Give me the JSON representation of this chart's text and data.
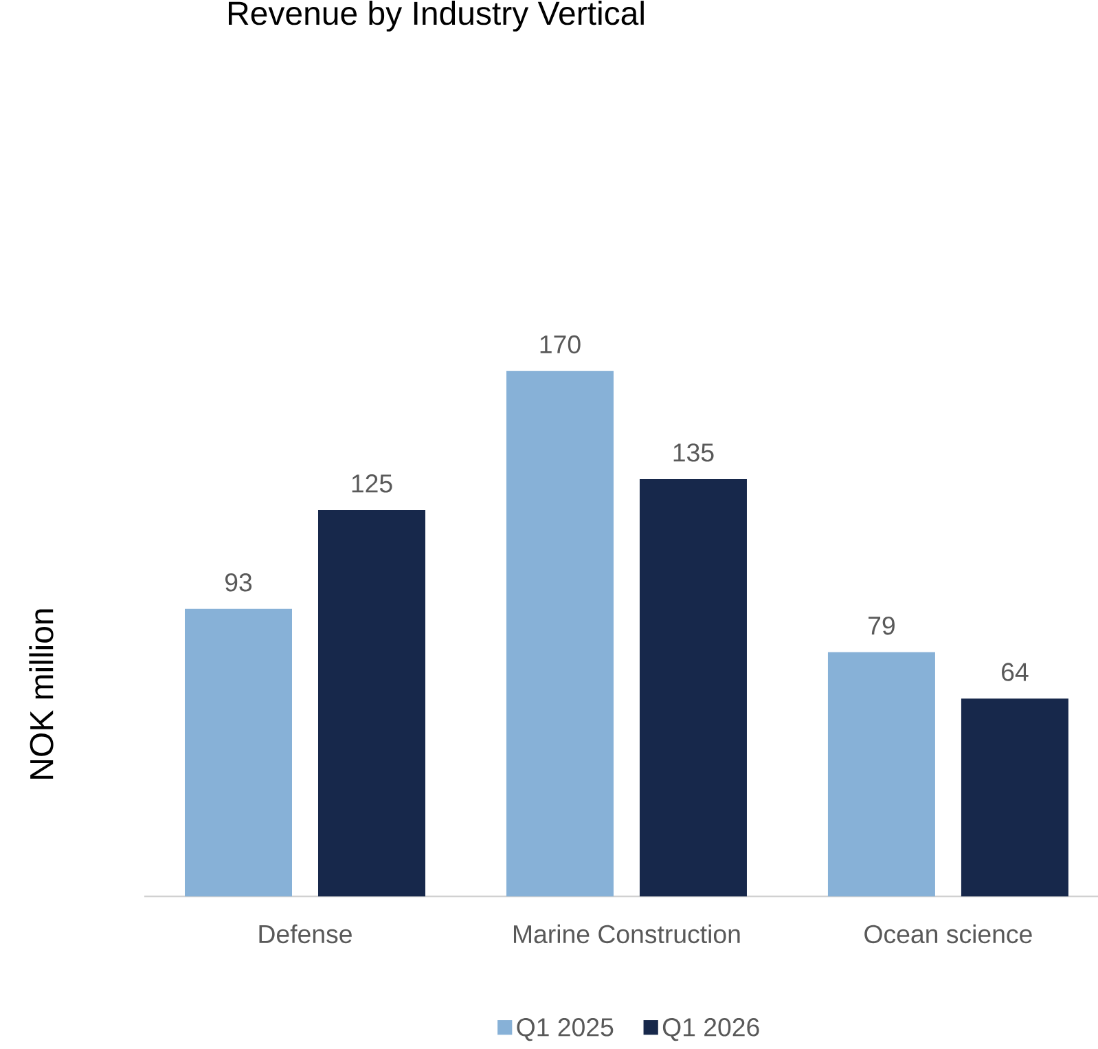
{
  "chart_data": {
    "type": "bar",
    "title": "Revenue by Industry Vertical",
    "ylabel": "NOK million",
    "categories": [
      "Defense",
      "Marine Construction",
      "Ocean science"
    ],
    "series": [
      {
        "name": "Q1 2025",
        "color": "#87b1d7",
        "values": [
          93,
          170,
          79
        ]
      },
      {
        "name": "Q1 2026",
        "color": "#17284b",
        "values": [
          125,
          135,
          64
        ]
      }
    ],
    "data_labels": true,
    "legend": "bottom"
  }
}
